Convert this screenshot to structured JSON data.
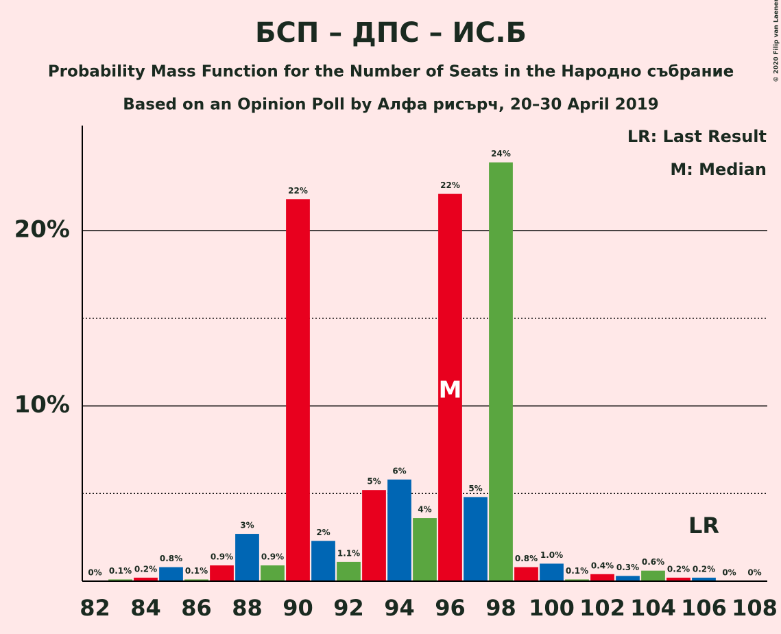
{
  "chart_data": {
    "type": "bar",
    "title": "БСП – ДПС – ИС.Б",
    "subtitle": "Probability Mass Function for the Number of Seats in the Народно събрание",
    "subtitle2": "Based on an Opinion Poll by Алфа рисърч, 20–30 April 2019",
    "copyright": "© 2020 Filip van Laenen",
    "legend": [
      "LR: Last Result",
      "M: Median"
    ],
    "x": [
      82,
      83,
      84,
      85,
      86,
      87,
      88,
      89,
      90,
      91,
      92,
      93,
      94,
      95,
      96,
      97,
      98,
      99,
      100,
      101,
      102,
      103,
      104,
      105,
      106,
      107,
      108
    ],
    "values": [
      0,
      0.1,
      0.2,
      0.8,
      0.1,
      0.9,
      2.7,
      0.9,
      21.8,
      2.3,
      1.1,
      5.2,
      5.8,
      3.6,
      22.1,
      4.8,
      23.9,
      0.8,
      1.0,
      0.1,
      0.4,
      0.3,
      0.6,
      0.2,
      0.2,
      0,
      0
    ],
    "value_labels": [
      "0%",
      "0.1%",
      "0.2%",
      "0.8%",
      "0.1%",
      "0.9%",
      "3%",
      "0.9%",
      "22%",
      "2%",
      "1.1%",
      "5%",
      "6%",
      "4%",
      "22%",
      "5%",
      "24%",
      "0.8%",
      "1.0%",
      "0.1%",
      "0.4%",
      "0.3%",
      "0.6%",
      "0.2%",
      "0.2%",
      "0%",
      "0%"
    ],
    "colors": [
      "#0066b4",
      "#5aa640",
      "#e8001e",
      "#0066b4",
      "#5aa640",
      "#e8001e",
      "#0066b4",
      "#5aa640",
      "#e8001e",
      "#0066b4",
      "#5aa640",
      "#e8001e",
      "#0066b4",
      "#5aa640",
      "#e8001e",
      "#0066b4",
      "#5aa640",
      "#e8001e",
      "#0066b4",
      "#5aa640",
      "#e8001e",
      "#0066b4",
      "#5aa640",
      "#e8001e",
      "#0066b4",
      "#5aa640",
      "#e8001e"
    ],
    "xlim": [
      81.5,
      108.5
    ],
    "xticks": [
      82,
      84,
      86,
      88,
      90,
      92,
      94,
      96,
      98,
      100,
      102,
      104,
      106,
      108
    ],
    "ylim": [
      0,
      26
    ],
    "yticks": [
      {
        "value": 10,
        "label": "10%"
      },
      {
        "value": 20,
        "label": "20%"
      }
    ],
    "minor_grid": [
      5,
      15
    ],
    "annotations": [
      {
        "text": "M",
        "x": 96
      },
      {
        "text": "LR",
        "x": 106
      }
    ]
  }
}
